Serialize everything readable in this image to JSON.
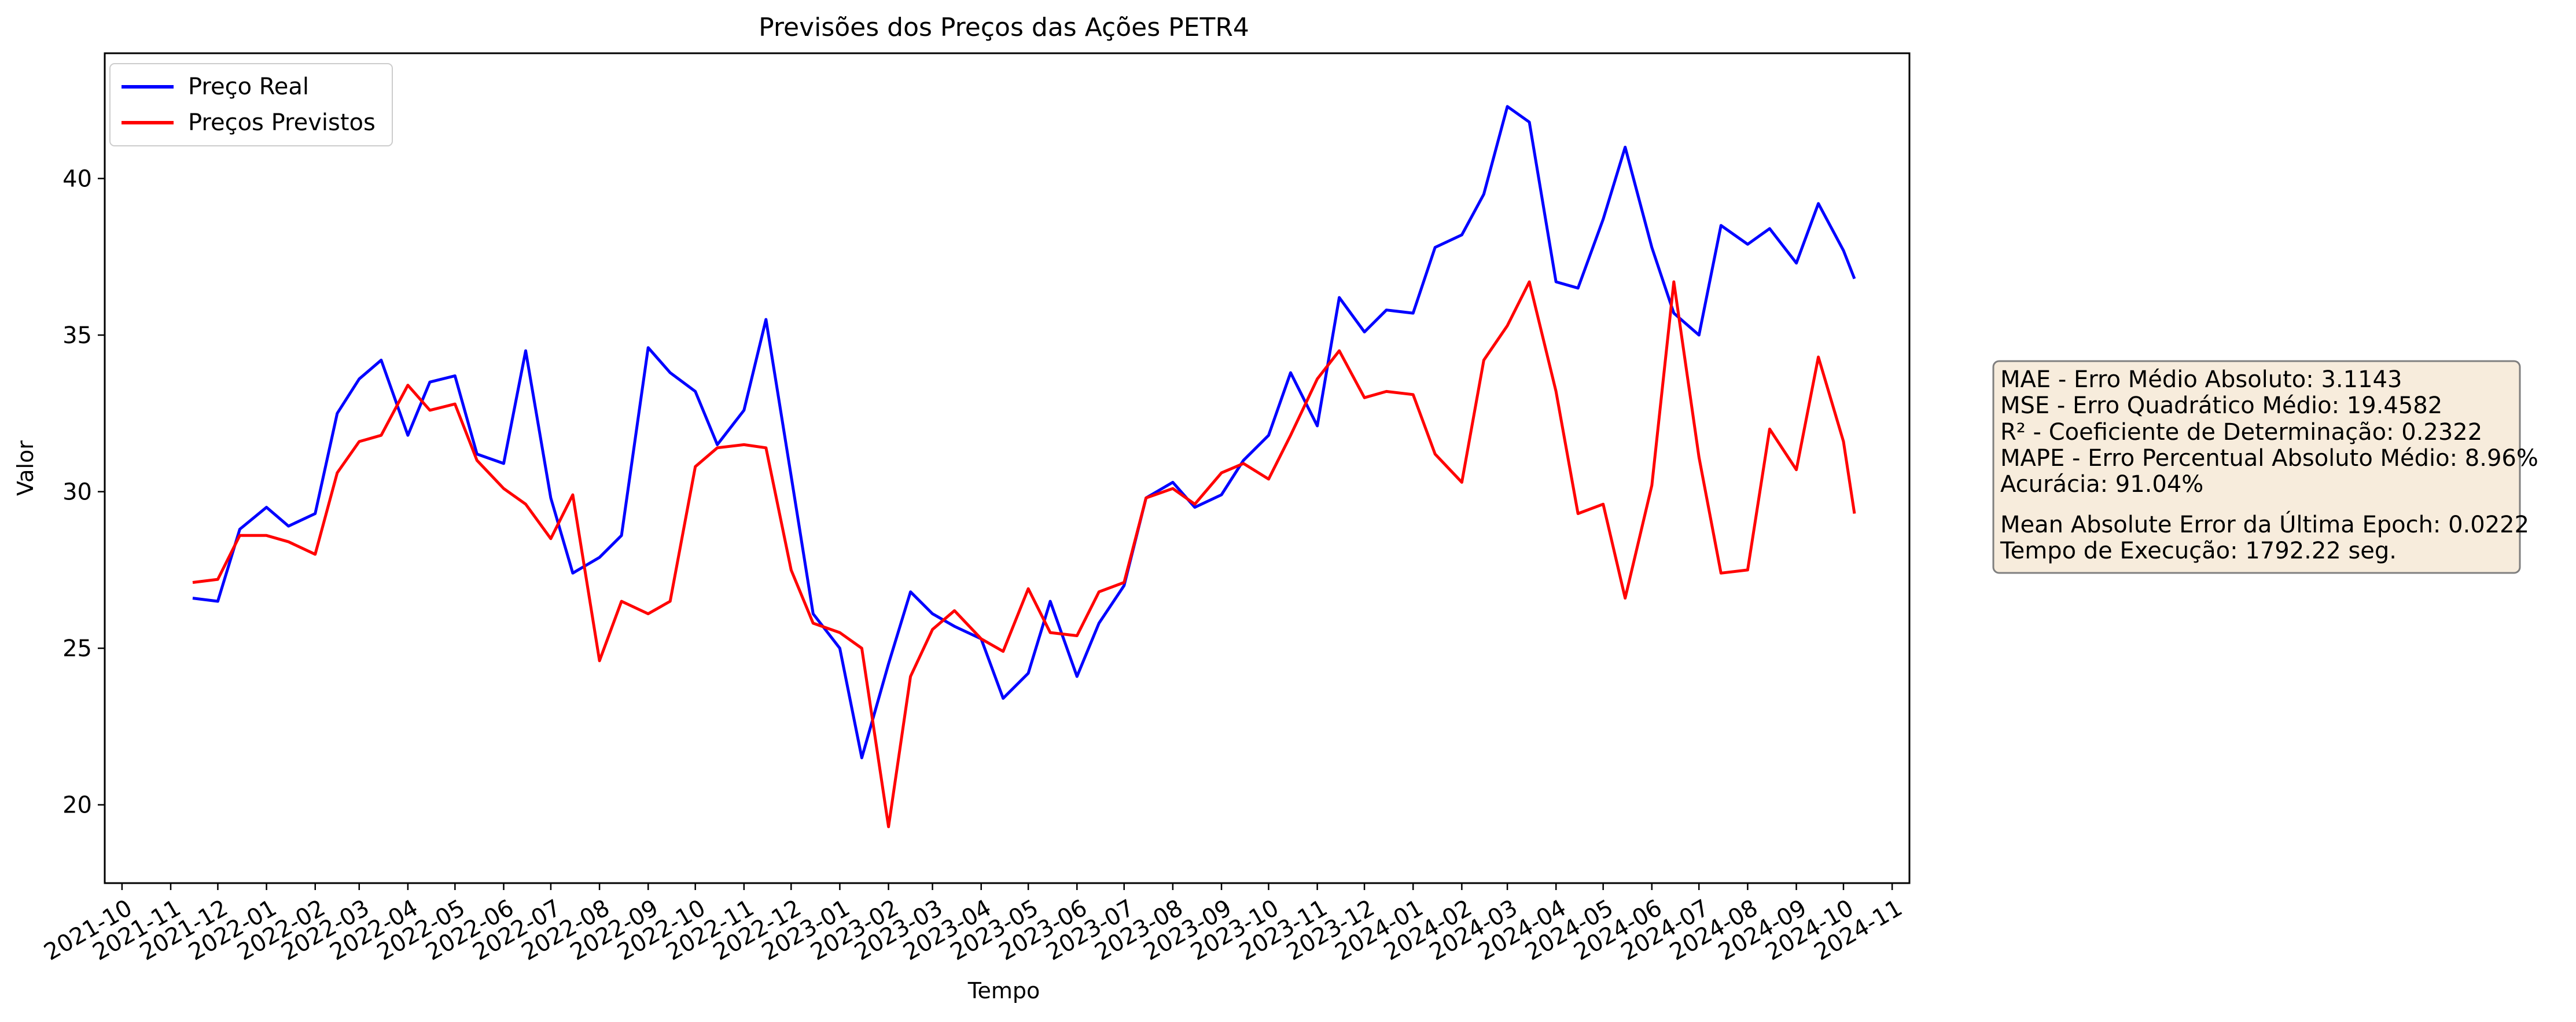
{
  "chart_data": {
    "type": "line",
    "title": "Previsões dos Preços das Ações PETR4",
    "xlabel": "Tempo",
    "ylabel": "Valor",
    "xlim": [
      "2021-09-20",
      "2024-11-12"
    ],
    "ylim": [
      17.5,
      44.0
    ],
    "grid": false,
    "legend_position": "top-left",
    "x_ticks": [
      "2021-10",
      "2021-11",
      "2021-12",
      "2022-01",
      "2022-02",
      "2022-03",
      "2022-04",
      "2022-05",
      "2022-06",
      "2022-07",
      "2022-08",
      "2022-09",
      "2022-10",
      "2022-11",
      "2022-12",
      "2023-01",
      "2023-02",
      "2023-03",
      "2023-04",
      "2023-05",
      "2023-06",
      "2023-07",
      "2023-08",
      "2023-09",
      "2023-10",
      "2023-11",
      "2023-12",
      "2024-01",
      "2024-02",
      "2024-03",
      "2024-04",
      "2024-05",
      "2024-06",
      "2024-07",
      "2024-08",
      "2024-09",
      "2024-10",
      "2024-11"
    ],
    "y_ticks": [
      20,
      25,
      30,
      35,
      40
    ],
    "x": [
      "2021-11-15",
      "2021-12-01",
      "2021-12-15",
      "2022-01-01",
      "2022-01-15",
      "2022-02-01",
      "2022-02-15",
      "2022-03-01",
      "2022-03-15",
      "2022-04-01",
      "2022-04-15",
      "2022-05-01",
      "2022-05-15",
      "2022-06-01",
      "2022-06-15",
      "2022-07-01",
      "2022-07-15",
      "2022-08-01",
      "2022-08-15",
      "2022-09-01",
      "2022-09-15",
      "2022-10-01",
      "2022-10-15",
      "2022-11-01",
      "2022-11-15",
      "2022-12-01",
      "2022-12-15",
      "2023-01-01",
      "2023-01-15",
      "2023-02-01",
      "2023-02-15",
      "2023-03-01",
      "2023-03-15",
      "2023-04-01",
      "2023-04-15",
      "2023-05-01",
      "2023-05-15",
      "2023-06-01",
      "2023-06-15",
      "2023-07-01",
      "2023-07-15",
      "2023-08-01",
      "2023-08-15",
      "2023-09-01",
      "2023-09-15",
      "2023-10-01",
      "2023-10-15",
      "2023-11-01",
      "2023-11-15",
      "2023-12-01",
      "2023-12-15",
      "2024-01-01",
      "2024-01-15",
      "2024-02-01",
      "2024-02-15",
      "2024-03-01",
      "2024-03-15",
      "2024-04-01",
      "2024-04-15",
      "2024-05-01",
      "2024-05-15",
      "2024-06-01",
      "2024-06-15",
      "2024-07-01",
      "2024-07-15",
      "2024-08-01",
      "2024-08-15",
      "2024-09-01",
      "2024-09-15",
      "2024-10-01",
      "2024-10-08"
    ],
    "series": [
      {
        "name": "Preço Real",
        "color": "#0000ff",
        "values": [
          26.6,
          26.5,
          28.8,
          29.5,
          28.9,
          29.3,
          32.5,
          33.6,
          34.2,
          31.8,
          33.5,
          33.7,
          31.2,
          30.9,
          34.5,
          29.8,
          27.4,
          27.9,
          28.6,
          34.6,
          33.8,
          33.2,
          31.5,
          32.6,
          35.5,
          30.5,
          26.1,
          25.0,
          21.5,
          24.5,
          26.8,
          26.1,
          25.7,
          25.3,
          23.4,
          24.2,
          26.5,
          24.1,
          25.8,
          27.0,
          29.8,
          30.3,
          29.5,
          29.9,
          31.0,
          31.8,
          33.8,
          32.1,
          36.2,
          35.1,
          35.8,
          35.7,
          37.8,
          38.2,
          39.5,
          42.3,
          41.8,
          36.7,
          36.5,
          38.7,
          41.0,
          37.8,
          35.7,
          35.0,
          38.5,
          37.9,
          38.4,
          37.3,
          39.2,
          37.7,
          36.8
        ]
      },
      {
        "name": "Preços Previstos",
        "color": "#ff0000",
        "values": [
          27.1,
          27.2,
          28.6,
          28.6,
          28.4,
          28.0,
          30.6,
          31.6,
          31.8,
          33.4,
          32.6,
          32.8,
          31.0,
          30.1,
          29.6,
          28.5,
          29.9,
          24.6,
          26.5,
          26.1,
          26.5,
          30.8,
          31.4,
          31.5,
          31.4,
          27.5,
          25.8,
          25.5,
          25.0,
          19.3,
          24.1,
          25.6,
          26.2,
          25.3,
          24.9,
          26.9,
          25.5,
          25.4,
          26.8,
          27.1,
          29.8,
          30.1,
          29.6,
          30.6,
          30.9,
          30.4,
          31.8,
          33.6,
          34.5,
          33.0,
          33.2,
          33.1,
          31.2,
          30.3,
          34.2,
          35.3,
          36.7,
          33.2,
          29.3,
          29.6,
          26.6,
          30.2,
          36.7,
          31.1,
          27.4,
          27.5,
          32.0,
          30.7,
          34.3,
          31.6,
          29.3
        ]
      }
    ],
    "annotations": [
      "MAE - Erro Médio Absoluto: 3.1143",
      "MSE - Erro Quadrático Médio: 19.4582",
      "R² - Coeficiente de Determinação: 0.2322",
      "MAPE - Erro Percentual Absoluto Médio: 8.96%",
      "Acurácia: 91.04%",
      "Mean Absolute Error da Última Epoch: 0.0222",
      "Tempo de Execução: 1792.22 seg."
    ]
  },
  "colors": {
    "text_box_fill": "#f7ecdc",
    "text_box_border": "#7f7f7f"
  }
}
